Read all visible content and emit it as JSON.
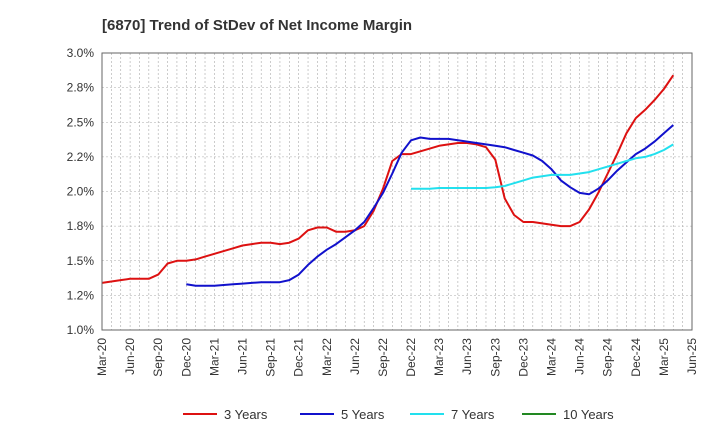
{
  "chart_data": {
    "type": "line",
    "title": "[6870]  Trend of StDev of Net Income Margin",
    "xlabel": "",
    "ylabel": "",
    "x_tick_labels": [
      "Mar-20",
      "Jun-20",
      "Sep-20",
      "Dec-20",
      "Mar-21",
      "Jun-21",
      "Sep-21",
      "Dec-21",
      "Mar-22",
      "Jun-22",
      "Sep-22",
      "Dec-22",
      "Mar-23",
      "Jun-23",
      "Sep-23",
      "Dec-23",
      "Mar-24",
      "Jun-24",
      "Sep-24",
      "Dec-24",
      "Mar-25",
      "Jun-25"
    ],
    "y_tick_labels": [
      "1.0%",
      "1.2%",
      "1.5%",
      "1.8%",
      "2.0%",
      "2.2%",
      "2.5%",
      "2.8%",
      "3.0%"
    ],
    "ylim": [
      1.0,
      3.0
    ],
    "y_unit": "%",
    "grid": true,
    "legend_position": "bottom",
    "series": [
      {
        "name": "3 Years",
        "color": "#dd1111",
        "values": [
          [
            "2020-03",
            1.34
          ],
          [
            "2020-04",
            1.35
          ],
          [
            "2020-05",
            1.36
          ],
          [
            "2020-06",
            1.37
          ],
          [
            "2020-07",
            1.37
          ],
          [
            "2020-08",
            1.37
          ],
          [
            "2020-09",
            1.4
          ],
          [
            "2020-10",
            1.48
          ],
          [
            "2020-11",
            1.5
          ],
          [
            "2020-12",
            1.5
          ],
          [
            "2021-01",
            1.51
          ],
          [
            "2021-02",
            1.53
          ],
          [
            "2021-03",
            1.55
          ],
          [
            "2021-04",
            1.57
          ],
          [
            "2021-05",
            1.59
          ],
          [
            "2021-06",
            1.61
          ],
          [
            "2021-07",
            1.62
          ],
          [
            "2021-08",
            1.63
          ],
          [
            "2021-09",
            1.63
          ],
          [
            "2021-10",
            1.62
          ],
          [
            "2021-11",
            1.63
          ],
          [
            "2021-12",
            1.66
          ],
          [
            "2022-01",
            1.72
          ],
          [
            "2022-02",
            1.74
          ],
          [
            "2022-03",
            1.74
          ],
          [
            "2022-04",
            1.71
          ],
          [
            "2022-05",
            1.71
          ],
          [
            "2022-06",
            1.72
          ],
          [
            "2022-07",
            1.75
          ],
          [
            "2022-08",
            1.86
          ],
          [
            "2022-09",
            2.02
          ],
          [
            "2022-10",
            2.22
          ],
          [
            "2022-11",
            2.27
          ],
          [
            "2022-12",
            2.27
          ],
          [
            "2023-01",
            2.29
          ],
          [
            "2023-02",
            2.31
          ],
          [
            "2023-03",
            2.33
          ],
          [
            "2023-04",
            2.34
          ],
          [
            "2023-05",
            2.35
          ],
          [
            "2023-06",
            2.35
          ],
          [
            "2023-07",
            2.34
          ],
          [
            "2023-08",
            2.32
          ],
          [
            "2023-09",
            2.23
          ],
          [
            "2023-10",
            1.95
          ],
          [
            "2023-11",
            1.83
          ],
          [
            "2023-12",
            1.78
          ],
          [
            "2024-01",
            1.78
          ],
          [
            "2024-02",
            1.77
          ],
          [
            "2024-03",
            1.76
          ],
          [
            "2024-04",
            1.75
          ],
          [
            "2024-05",
            1.75
          ],
          [
            "2024-06",
            1.78
          ],
          [
            "2024-07",
            1.87
          ],
          [
            "2024-08",
            1.99
          ],
          [
            "2024-09",
            2.13
          ],
          [
            "2024-10",
            2.27
          ],
          [
            "2024-11",
            2.42
          ],
          [
            "2024-12",
            2.53
          ],
          [
            "2025-01",
            2.59
          ],
          [
            "2025-02",
            2.66
          ],
          [
            "2025-03",
            2.74
          ],
          [
            "2025-04",
            2.84
          ]
        ]
      },
      {
        "name": "5 Years",
        "color": "#1111cc",
        "values": [
          [
            "2020-12",
            1.33
          ],
          [
            "2021-01",
            1.32
          ],
          [
            "2021-02",
            1.32
          ],
          [
            "2021-03",
            1.32
          ],
          [
            "2021-04",
            1.325
          ],
          [
            "2021-05",
            1.33
          ],
          [
            "2021-06",
            1.335
          ],
          [
            "2021-07",
            1.34
          ],
          [
            "2021-08",
            1.345
          ],
          [
            "2021-09",
            1.345
          ],
          [
            "2021-10",
            1.345
          ],
          [
            "2021-11",
            1.36
          ],
          [
            "2021-12",
            1.4
          ],
          [
            "2022-01",
            1.47
          ],
          [
            "2022-02",
            1.53
          ],
          [
            "2022-03",
            1.58
          ],
          [
            "2022-04",
            1.62
          ],
          [
            "2022-05",
            1.67
          ],
          [
            "2022-06",
            1.72
          ],
          [
            "2022-07",
            1.78
          ],
          [
            "2022-08",
            1.88
          ],
          [
            "2022-09",
            1.99
          ],
          [
            "2022-10",
            2.13
          ],
          [
            "2022-11",
            2.28
          ],
          [
            "2022-12",
            2.37
          ],
          [
            "2023-01",
            2.39
          ],
          [
            "2023-02",
            2.38
          ],
          [
            "2023-03",
            2.38
          ],
          [
            "2023-04",
            2.38
          ],
          [
            "2023-05",
            2.37
          ],
          [
            "2023-06",
            2.36
          ],
          [
            "2023-07",
            2.35
          ],
          [
            "2023-08",
            2.34
          ],
          [
            "2023-09",
            2.33
          ],
          [
            "2023-10",
            2.32
          ],
          [
            "2023-11",
            2.3
          ],
          [
            "2023-12",
            2.28
          ],
          [
            "2024-01",
            2.26
          ],
          [
            "2024-02",
            2.22
          ],
          [
            "2024-03",
            2.16
          ],
          [
            "2024-04",
            2.08
          ],
          [
            "2024-05",
            2.03
          ],
          [
            "2024-06",
            1.99
          ],
          [
            "2024-07",
            1.98
          ],
          [
            "2024-08",
            2.02
          ],
          [
            "2024-09",
            2.08
          ],
          [
            "2024-10",
            2.15
          ],
          [
            "2024-11",
            2.21
          ],
          [
            "2024-12",
            2.27
          ],
          [
            "2025-01",
            2.31
          ],
          [
            "2025-02",
            2.36
          ],
          [
            "2025-03",
            2.42
          ],
          [
            "2025-04",
            2.48
          ]
        ]
      },
      {
        "name": "7 Years",
        "color": "#22e0ee",
        "values": [
          [
            "2022-12",
            2.02
          ],
          [
            "2023-01",
            2.02
          ],
          [
            "2023-02",
            2.02
          ],
          [
            "2023-03",
            2.025
          ],
          [
            "2023-04",
            2.025
          ],
          [
            "2023-05",
            2.025
          ],
          [
            "2023-06",
            2.025
          ],
          [
            "2023-07",
            2.025
          ],
          [
            "2023-08",
            2.025
          ],
          [
            "2023-09",
            2.03
          ],
          [
            "2023-10",
            2.04
          ],
          [
            "2023-11",
            2.06
          ],
          [
            "2023-12",
            2.08
          ],
          [
            "2024-01",
            2.1
          ],
          [
            "2024-02",
            2.11
          ],
          [
            "2024-03",
            2.12
          ],
          [
            "2024-04",
            2.12
          ],
          [
            "2024-05",
            2.12
          ],
          [
            "2024-06",
            2.13
          ],
          [
            "2024-07",
            2.14
          ],
          [
            "2024-08",
            2.16
          ],
          [
            "2024-09",
            2.18
          ],
          [
            "2024-10",
            2.2
          ],
          [
            "2024-11",
            2.22
          ],
          [
            "2024-12",
            2.24
          ],
          [
            "2025-01",
            2.25
          ],
          [
            "2025-02",
            2.27
          ],
          [
            "2025-03",
            2.3
          ],
          [
            "2025-04",
            2.34
          ]
        ]
      },
      {
        "name": "10 Years",
        "color": "#228822",
        "values": []
      }
    ]
  }
}
